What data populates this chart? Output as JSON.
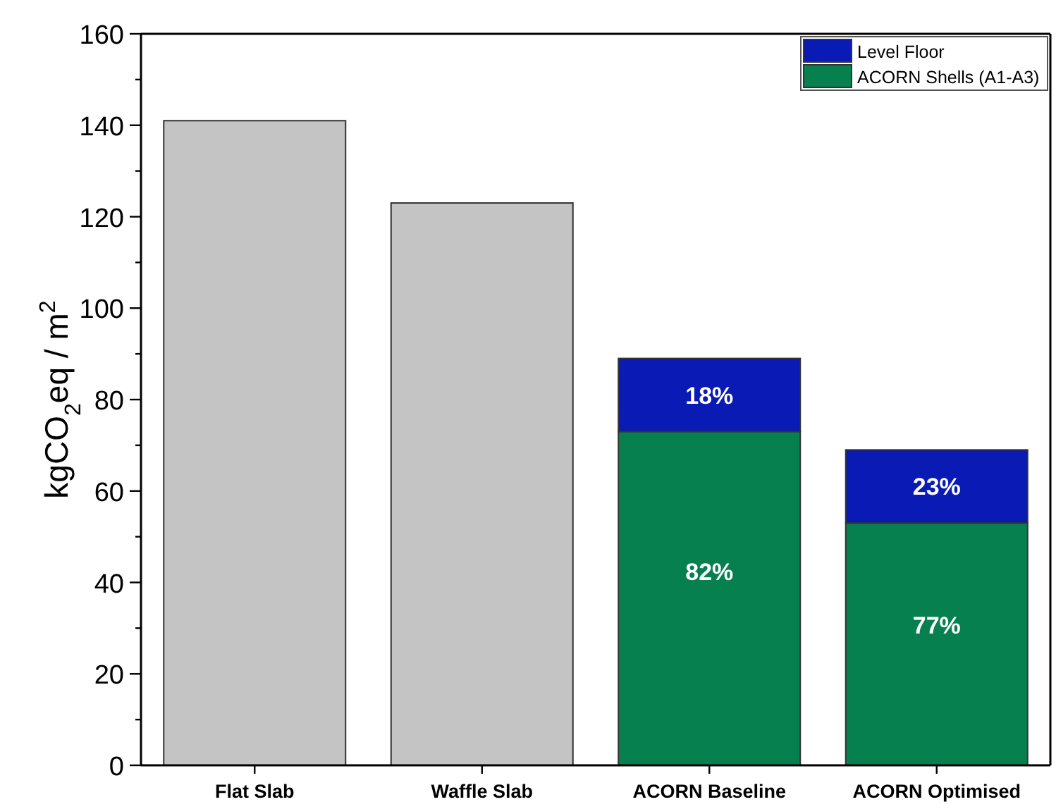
{
  "chart_data": {
    "type": "bar",
    "stacked": true,
    "ylabel": "kgCO$_{2}$eq / m$^{2}$",
    "categories": [
      "Flat Slab",
      "Waffle Slab",
      "ACORN Baseline",
      "ACORN Optimised"
    ],
    "series": [
      {
        "color": "#c4c4c4",
        "values": [
          141,
          123,
          null,
          null
        ]
      },
      {
        "name": "ACORN Shells (A1-A3)",
        "color": "#078050",
        "values": [
          null,
          null,
          73,
          53
        ]
      },
      {
        "name": "Level Floor",
        "color": "#0a1ab4",
        "values": [
          null,
          null,
          16,
          16
        ]
      }
    ],
    "annotations": [
      "18%",
      "82%",
      "23%",
      "77%"
    ],
    "ylim": [
      0,
      160
    ],
    "yticks": [
      0,
      {
        "value": 10,
        "label": null
      },
      20,
      {
        "value": 30,
        "label": null
      },
      40,
      {
        "value": 50,
        "label": null
      },
      60,
      {
        "value": 70,
        "label": null
      },
      80,
      {
        "value": 90,
        "label": null
      },
      100,
      {
        "value": 110,
        "label": null
      },
      120,
      {
        "value": 130,
        "label": null
      },
      140,
      {
        "value": 150,
        "label": null
      },
      160
    ],
    "legend": "top right"
  }
}
